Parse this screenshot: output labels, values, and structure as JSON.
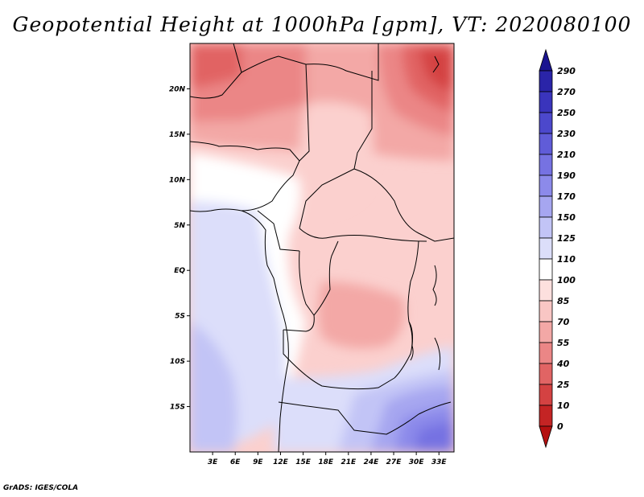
{
  "title": "Geopotential Height at 1000hPa [gpm], VT: 2020080100",
  "footer": "GrADS: IGES/COLA",
  "map": {
    "lon_labels": [
      "3E",
      "6E",
      "9E",
      "12E",
      "15E",
      "18E",
      "21E",
      "24E",
      "27E",
      "30E",
      "33E"
    ],
    "lat_labels": [
      "20N",
      "15N",
      "10N",
      "5N",
      "EQ",
      "5S",
      "10S",
      "15S"
    ],
    "lon_range": [
      0,
      35
    ],
    "lat_range": [
      -20,
      25
    ]
  },
  "colorbar": {
    "levels": [
      "290",
      "270",
      "250",
      "230",
      "210",
      "190",
      "170",
      "150",
      "125",
      "110",
      "100",
      "85",
      "70",
      "55",
      "40",
      "25",
      "10",
      "0"
    ],
    "colors": [
      "#1a1490",
      "#2a24a8",
      "#3a34bc",
      "#4c48cc",
      "#605cd8",
      "#7672e2",
      "#8c8aea",
      "#a6a6f0",
      "#c2c4f6",
      "#dcdefa",
      "#ffffff",
      "#fde0de",
      "#f9c6c4",
      "#f3a8a6",
      "#eb8686",
      "#e16464",
      "#d44242",
      "#c42424",
      "#b41010"
    ]
  }
}
